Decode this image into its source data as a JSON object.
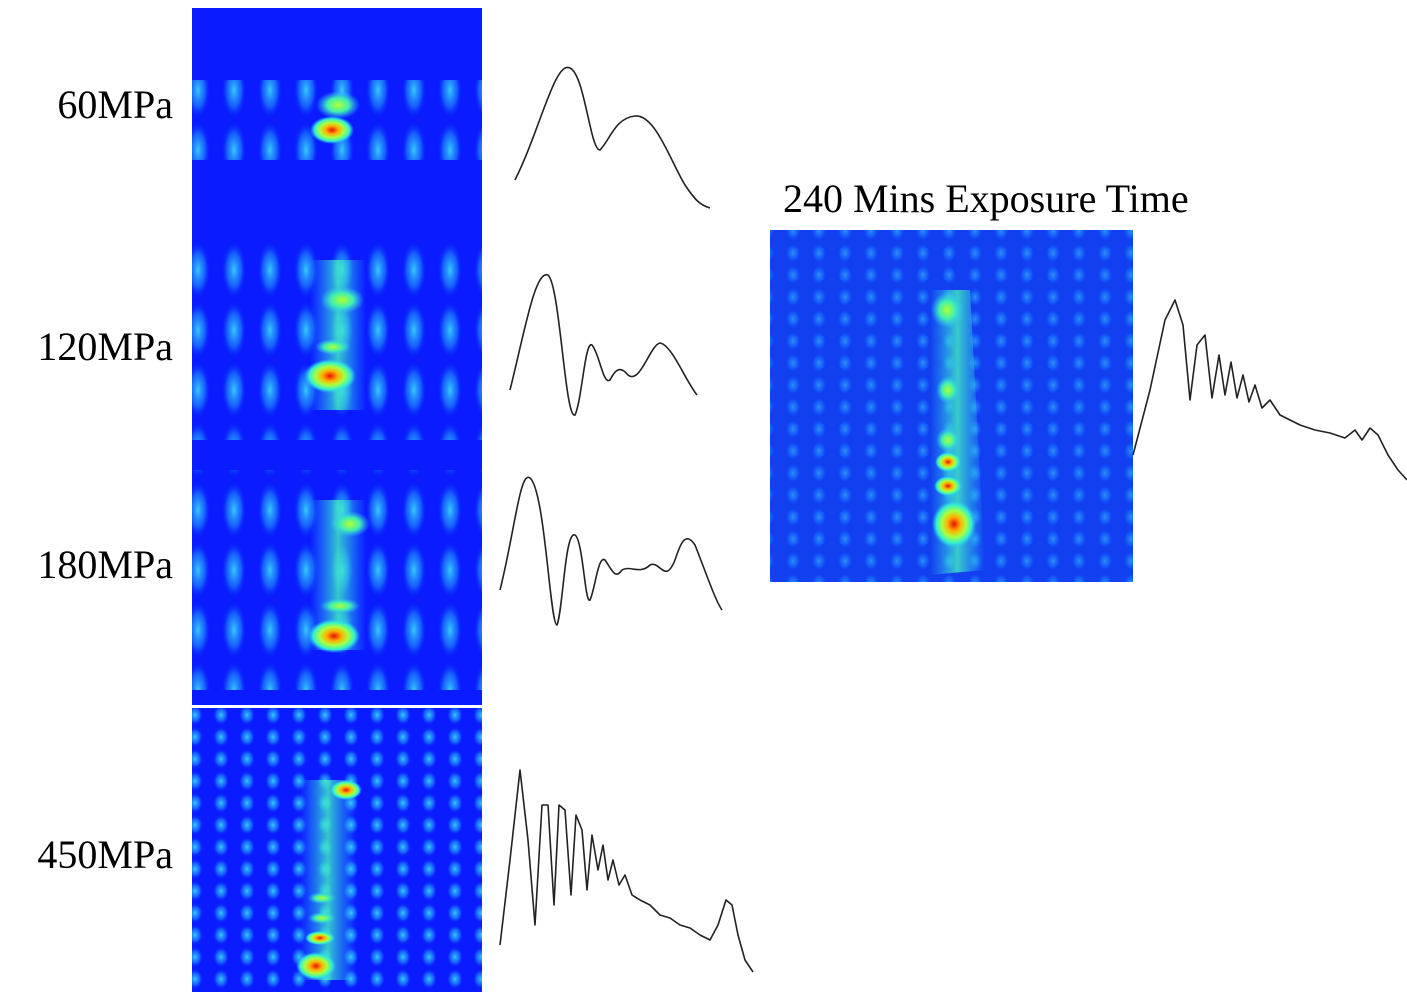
{
  "labels": [
    "60MPa",
    "120MPa",
    "180MPa",
    "450MPa"
  ],
  "right_panel": {
    "title": "240 Mins Exposure Time"
  }
}
